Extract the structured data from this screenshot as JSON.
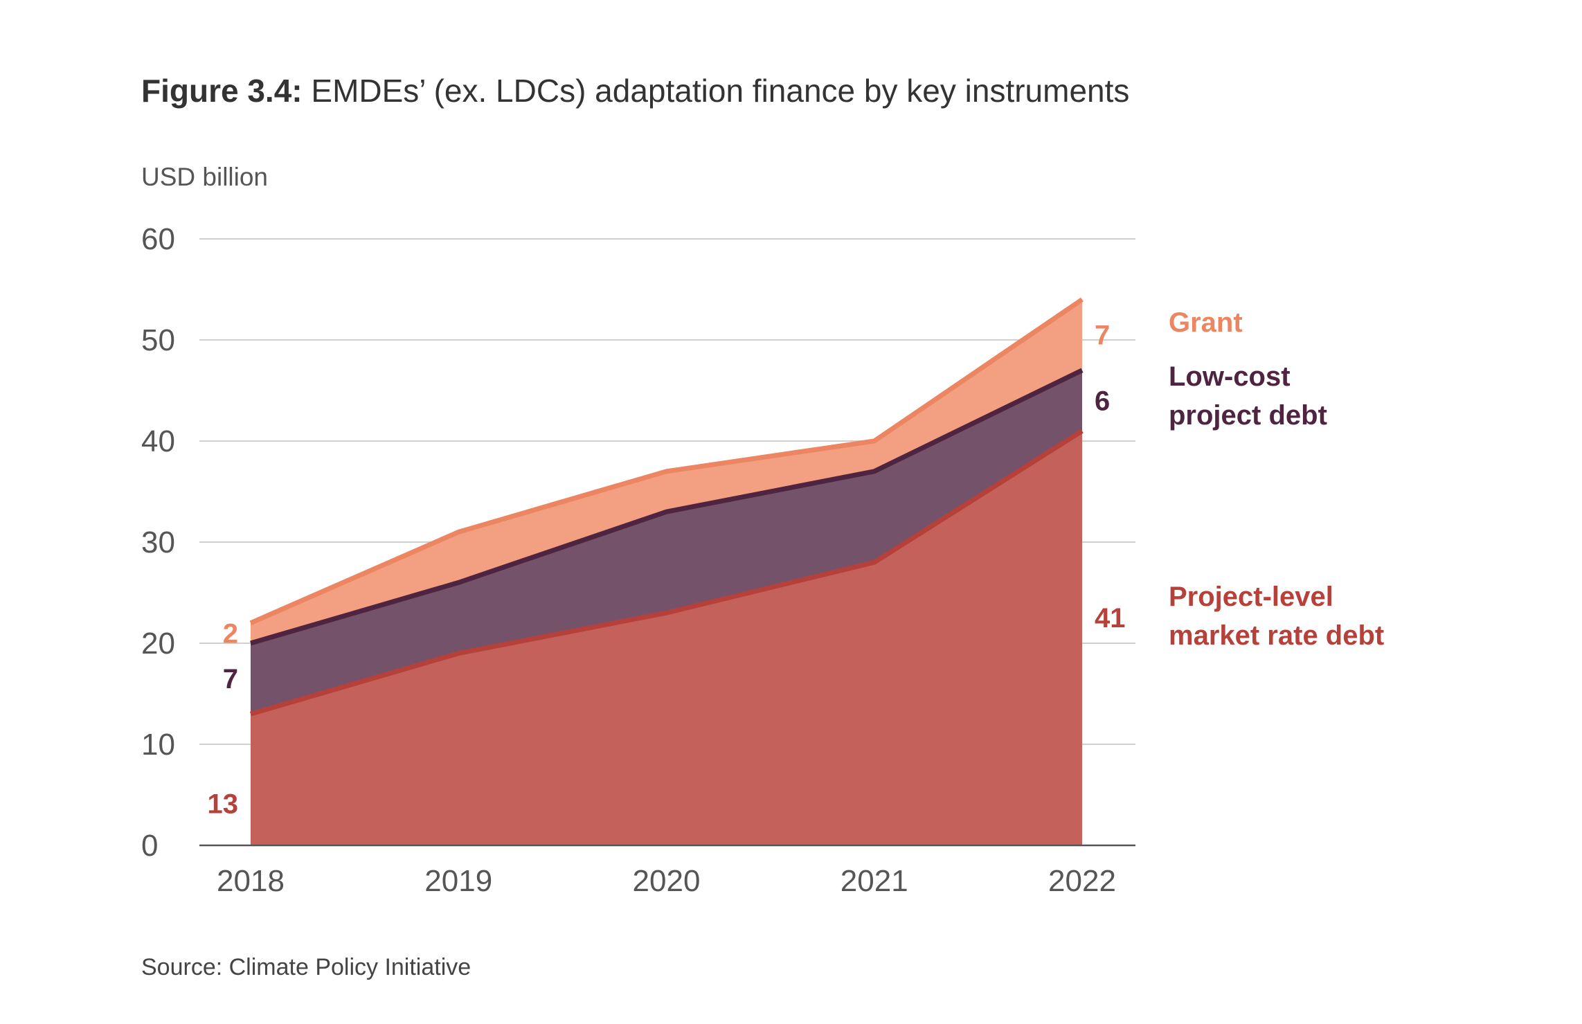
{
  "title": {
    "figure": "Figure 3.4:",
    "text": "EMDEs’ (ex. LDCs) adaptation finance by key instruments"
  },
  "source": "Source: Climate Policy Initiative",
  "chart_data": {
    "type": "area",
    "stacked": true,
    "ylabel": "USD billion",
    "xlabel": "",
    "x": [
      "2018",
      "2019",
      "2020",
      "2021",
      "2022"
    ],
    "ylim": [
      0,
      60
    ],
    "yticks": [
      0,
      10,
      20,
      30,
      40,
      50,
      60
    ],
    "grid": true,
    "legend_placement": "right",
    "series": [
      {
        "name": "Project-level market rate debt",
        "values": [
          13,
          19,
          23,
          28,
          41
        ],
        "color": "#b5413a",
        "fill": "#c5615b"
      },
      {
        "name": "Low-cost project debt",
        "values": [
          7,
          7,
          10,
          9,
          6
        ],
        "color": "#4e2440",
        "fill": "#74536a"
      },
      {
        "name": "Grant",
        "values": [
          2,
          5,
          4,
          3,
          7
        ],
        "color": "#ec8561",
        "fill": "#f2a081"
      }
    ],
    "start_labels": [
      "13",
      "7",
      "2"
    ],
    "end_labels": [
      "41",
      "6",
      "7"
    ]
  },
  "legend": {
    "grant": [
      "Grant"
    ],
    "low_cost": [
      "Low-cost",
      "project debt"
    ],
    "market": [
      "Project-level",
      "market rate debt"
    ]
  }
}
